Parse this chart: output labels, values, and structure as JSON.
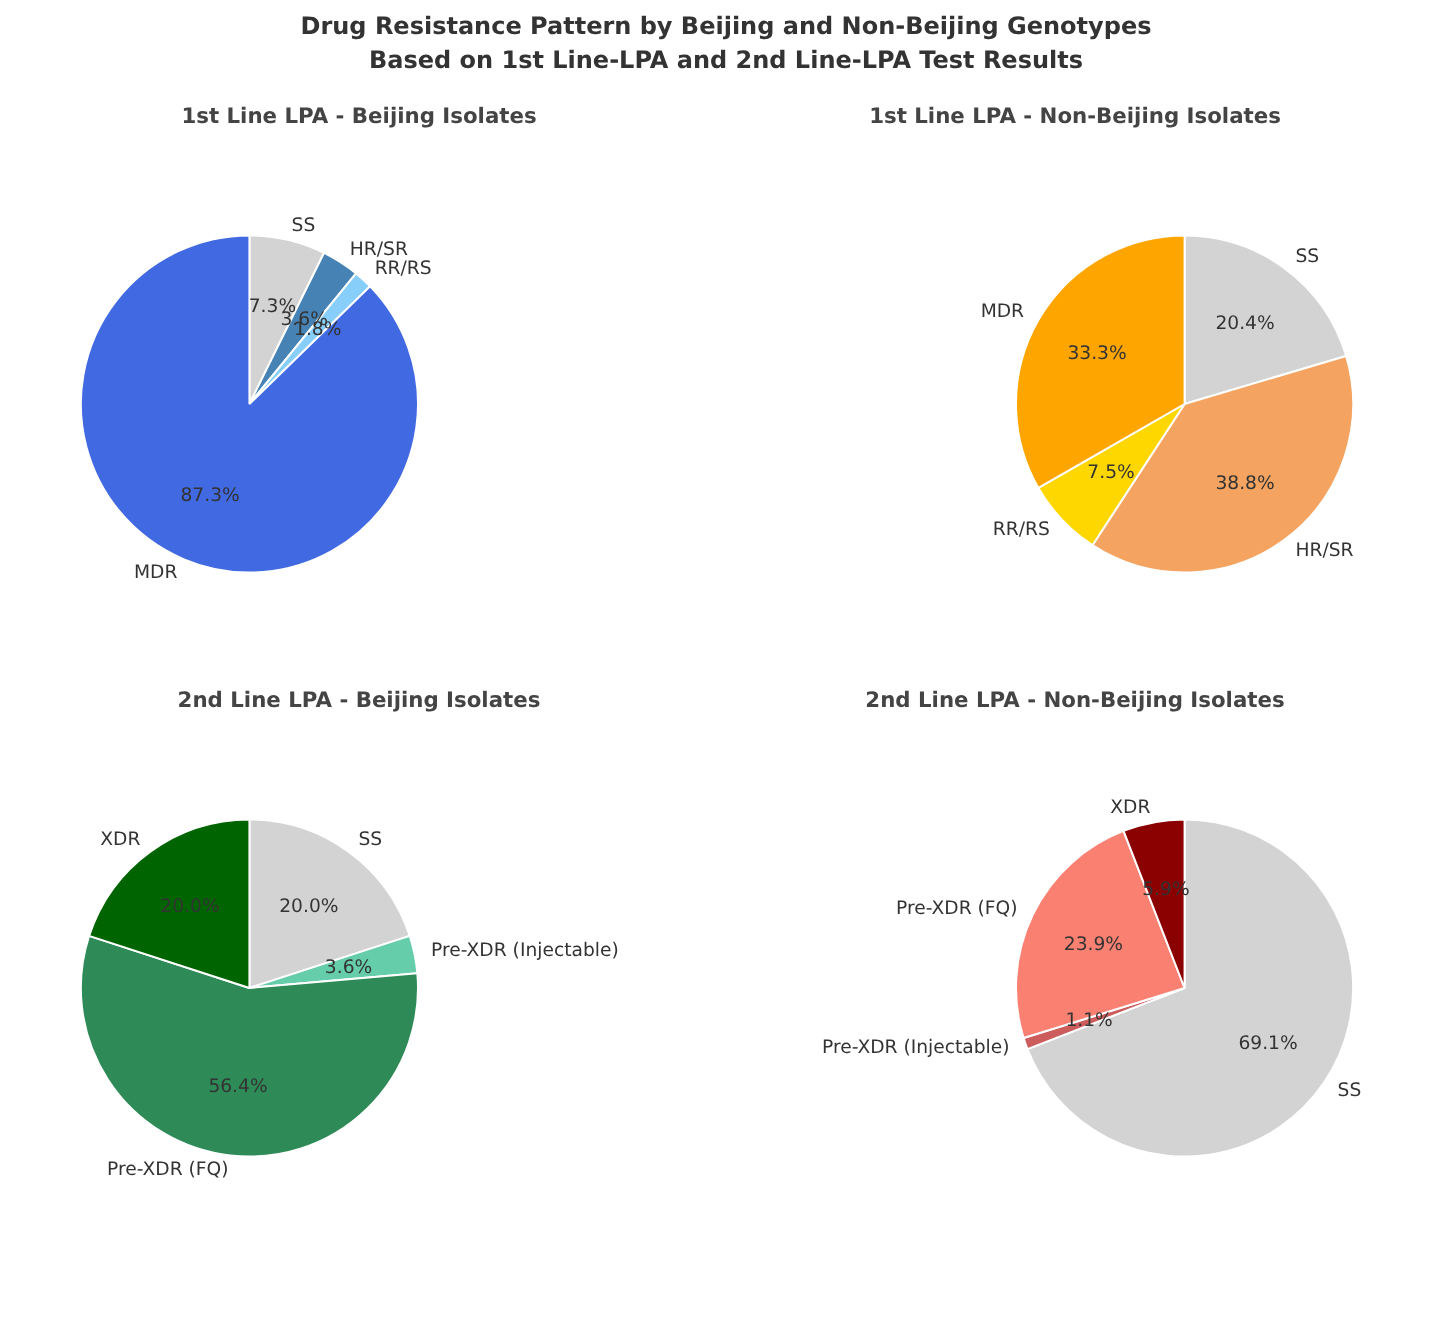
{
  "chart_data": [
    {
      "type": "pie",
      "title": "1st Line LPA - Beijing Isolates",
      "annotations": [
        "Drug Resistance Pattern by Beijing and Non-Beijing Genotypes\nBased on 1st Line-LPA and 2nd Line-LPA Test Results"
      ],
      "categories": [
        "SS",
        "HR/SR",
        "RR/RS",
        "MDR"
      ],
      "values": [
        7.3,
        3.6,
        1.8,
        87.3
      ],
      "value_labels": [
        "7.3%",
        "3.6%",
        "1.8%",
        "87.3%"
      ],
      "colors": [
        "#d3d3d3",
        "#4682b4",
        "#87cefa",
        "#4169e1"
      ],
      "legend": false
    },
    {
      "type": "pie",
      "title": "1st Line LPA - Non-Beijing Isolates",
      "categories": [
        "SS",
        "HR/SR",
        "RR/RS",
        "MDR"
      ],
      "values": [
        20.4,
        38.8,
        7.5,
        33.3
      ],
      "value_labels": [
        "20.4%",
        "38.8%",
        "7.5%",
        "33.3%"
      ],
      "colors": [
        "#d3d3d3",
        "#f4a460",
        "#ffd700",
        "#ffa500"
      ],
      "legend": false
    },
    {
      "type": "pie",
      "title": "2nd Line LPA - Beijing Isolates",
      "categories": [
        "SS",
        "Pre-XDR (Injectable)",
        "Pre-XDR (FQ)",
        "XDR"
      ],
      "values": [
        20.0,
        3.6,
        56.4,
        20.0
      ],
      "value_labels": [
        "20.0%",
        "3.6%",
        "56.4%",
        "20.0%"
      ],
      "colors": [
        "#d3d3d3",
        "#66cdaa",
        "#2e8b57",
        "#006400"
      ],
      "legend": false
    },
    {
      "type": "pie",
      "title": "2nd Line LPA - Non-Beijing Isolates",
      "categories": [
        "SS",
        "Pre-XDR (Injectable)",
        "Pre-XDR (FQ)",
        "XDR"
      ],
      "values": [
        69.1,
        1.1,
        23.9,
        5.9
      ],
      "value_labels": [
        "69.1%",
        "1.1%",
        "23.9%",
        "5.9%"
      ],
      "colors": [
        "#d3d3d3",
        "#cd5c5c",
        "#fa8072",
        "#8b0000"
      ],
      "legend": false
    }
  ]
}
